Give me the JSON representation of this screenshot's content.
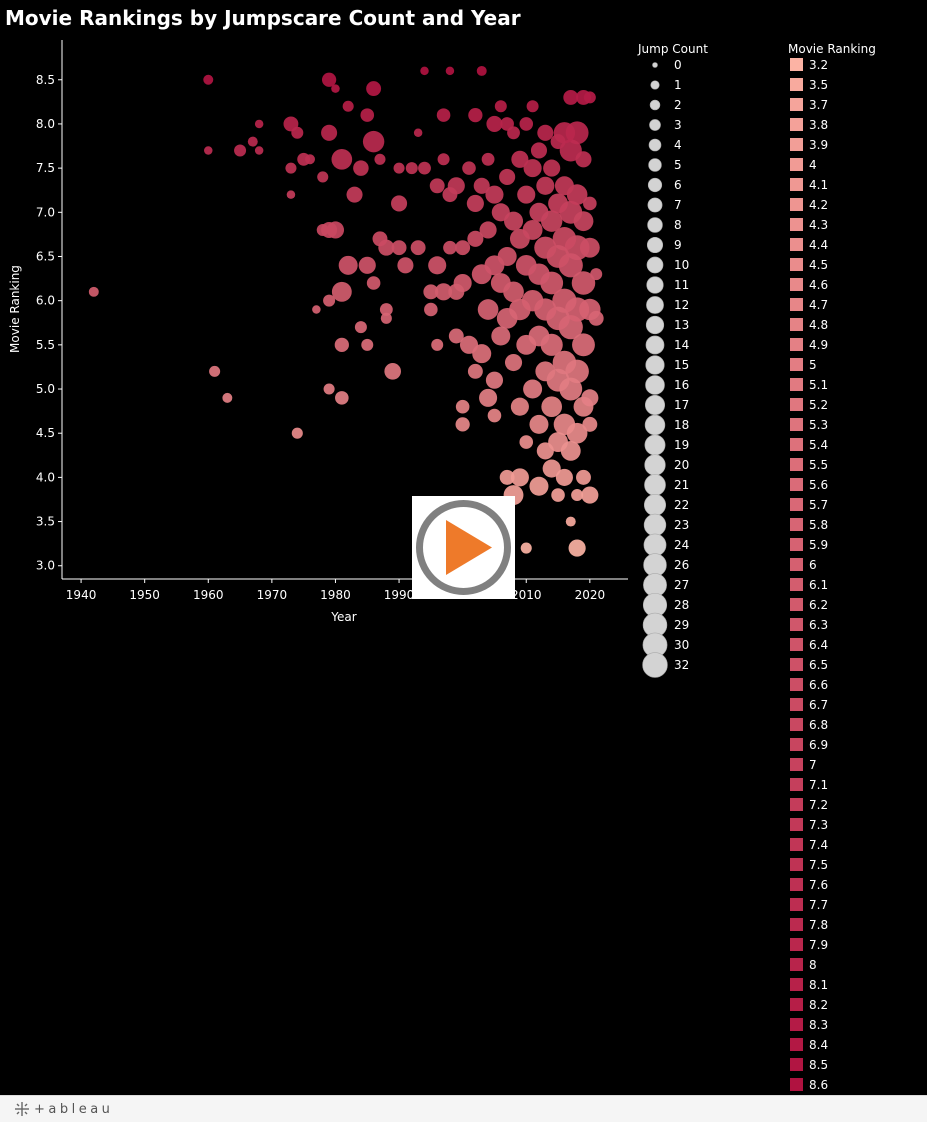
{
  "chart_data": {
    "type": "scatter",
    "title": "Movie Rankings by Jumpscare Count and Year",
    "xlabel": "Year",
    "ylabel": "Movie Ranking",
    "xlim": [
      1937,
      2026
    ],
    "ylim": [
      2.85,
      8.95
    ],
    "x_ticks": [
      "1940",
      "1950",
      "1960",
      "1970",
      "1980",
      "1990",
      "2000",
      "2010",
      "2020"
    ],
    "y_ticks": [
      "3.0",
      "3.5",
      "4.0",
      "4.5",
      "5.0",
      "5.5",
      "6.0",
      "6.5",
      "7.0",
      "7.5",
      "8.0",
      "8.5"
    ],
    "grid": false,
    "size_legend": {
      "title": "Jump Count",
      "values": [
        0,
        1,
        2,
        3,
        4,
        5,
        6,
        7,
        8,
        9,
        10,
        11,
        12,
        13,
        14,
        15,
        16,
        17,
        18,
        19,
        20,
        21,
        22,
        23,
        24,
        26,
        27,
        28,
        29,
        30,
        32
      ],
      "color": "#d3d3d3"
    },
    "color_legend": {
      "title": "Movie Ranking",
      "values": [
        "3.2",
        "3.5",
        "3.7",
        "3.8",
        "3.9",
        "4",
        "4.1",
        "4.2",
        "4.3",
        "4.4",
        "4.5",
        "4.6",
        "4.7",
        "4.8",
        "4.9",
        "5",
        "5.1",
        "5.2",
        "5.3",
        "5.4",
        "5.5",
        "5.6",
        "5.7",
        "5.8",
        "5.9",
        "6",
        "6.1",
        "6.2",
        "6.3",
        "6.4",
        "6.5",
        "6.6",
        "6.7",
        "6.8",
        "6.9",
        "7",
        "7.1",
        "7.2",
        "7.3",
        "7.4",
        "7.5",
        "7.6",
        "7.7",
        "7.8",
        "7.9",
        "8",
        "8.1",
        "8.2",
        "8.3",
        "8.4",
        "8.5",
        "8.6"
      ],
      "color_low": "#fcb3a4",
      "color_high": "#b01240"
    },
    "points": [
      {
        "x": 1942,
        "y": 6.1,
        "jumps": 2
      },
      {
        "x": 1960,
        "y": 8.5,
        "jumps": 2
      },
      {
        "x": 1960,
        "y": 7.7,
        "jumps": 1
      },
      {
        "x": 1961,
        "y": 5.2,
        "jumps": 3
      },
      {
        "x": 1963,
        "y": 4.9,
        "jumps": 2
      },
      {
        "x": 1965,
        "y": 7.7,
        "jumps": 4
      },
      {
        "x": 1967,
        "y": 7.8,
        "jumps": 2
      },
      {
        "x": 1968,
        "y": 8.0,
        "jumps": 1
      },
      {
        "x": 1968,
        "y": 7.7,
        "jumps": 1
      },
      {
        "x": 1973,
        "y": 8.0,
        "jumps": 8
      },
      {
        "x": 1973,
        "y": 7.5,
        "jumps": 3
      },
      {
        "x": 1973,
        "y": 7.2,
        "jumps": 1
      },
      {
        "x": 1974,
        "y": 7.9,
        "jumps": 4
      },
      {
        "x": 1974,
        "y": 4.5,
        "jumps": 3
      },
      {
        "x": 1975,
        "y": 7.6,
        "jumps": 5
      },
      {
        "x": 1976,
        "y": 7.6,
        "jumps": 2
      },
      {
        "x": 1977,
        "y": 5.9,
        "jumps": 1
      },
      {
        "x": 1978,
        "y": 7.4,
        "jumps": 3
      },
      {
        "x": 1978,
        "y": 6.8,
        "jumps": 4
      },
      {
        "x": 1979,
        "y": 8.5,
        "jumps": 7
      },
      {
        "x": 1979,
        "y": 7.9,
        "jumps": 10
      },
      {
        "x": 1979,
        "y": 6.8,
        "jumps": 10
      },
      {
        "x": 1979,
        "y": 6.0,
        "jumps": 4
      },
      {
        "x": 1979,
        "y": 5.0,
        "jumps": 3
      },
      {
        "x": 1980,
        "y": 8.4,
        "jumps": 1
      },
      {
        "x": 1980,
        "y": 6.8,
        "jumps": 12
      },
      {
        "x": 1981,
        "y": 7.6,
        "jumps": 20
      },
      {
        "x": 1981,
        "y": 6.1,
        "jumps": 18
      },
      {
        "x": 1981,
        "y": 5.5,
        "jumps": 7
      },
      {
        "x": 1981,
        "y": 4.9,
        "jumps": 6
      },
      {
        "x": 1982,
        "y": 8.2,
        "jumps": 3
      },
      {
        "x": 1982,
        "y": 6.4,
        "jumps": 16
      },
      {
        "x": 1983,
        "y": 7.2,
        "jumps": 10
      },
      {
        "x": 1984,
        "y": 7.5,
        "jumps": 9
      },
      {
        "x": 1984,
        "y": 5.7,
        "jumps": 4
      },
      {
        "x": 1985,
        "y": 8.1,
        "jumps": 6
      },
      {
        "x": 1985,
        "y": 6.4,
        "jumps": 12
      },
      {
        "x": 1985,
        "y": 5.5,
        "jumps": 4
      },
      {
        "x": 1986,
        "y": 8.4,
        "jumps": 8
      },
      {
        "x": 1986,
        "y": 7.8,
        "jumps": 22
      },
      {
        "x": 1986,
        "y": 6.2,
        "jumps": 6
      },
      {
        "x": 1987,
        "y": 7.6,
        "jumps": 3
      },
      {
        "x": 1987,
        "y": 6.7,
        "jumps": 8
      },
      {
        "x": 1988,
        "y": 6.6,
        "jumps": 10
      },
      {
        "x": 1988,
        "y": 5.9,
        "jumps": 5
      },
      {
        "x": 1988,
        "y": 5.8,
        "jumps": 3
      },
      {
        "x": 1989,
        "y": 5.2,
        "jumps": 11
      },
      {
        "x": 1990,
        "y": 7.1,
        "jumps": 10
      },
      {
        "x": 1990,
        "y": 7.5,
        "jumps": 3
      },
      {
        "x": 1990,
        "y": 6.6,
        "jumps": 8
      },
      {
        "x": 1991,
        "y": 6.4,
        "jumps": 10
      },
      {
        "x": 1992,
        "y": 7.5,
        "jumps": 4
      },
      {
        "x": 1993,
        "y": 7.9,
        "jumps": 1
      },
      {
        "x": 1993,
        "y": 6.6,
        "jumps": 8
      },
      {
        "x": 1994,
        "y": 8.6,
        "jumps": 1
      },
      {
        "x": 1994,
        "y": 7.5,
        "jumps": 5
      },
      {
        "x": 1995,
        "y": 6.1,
        "jumps": 8
      },
      {
        "x": 1995,
        "y": 5.9,
        "jumps": 6
      },
      {
        "x": 1996,
        "y": 7.3,
        "jumps": 8
      },
      {
        "x": 1996,
        "y": 6.4,
        "jumps": 14
      },
      {
        "x": 1996,
        "y": 5.5,
        "jumps": 4
      },
      {
        "x": 1997,
        "y": 8.1,
        "jumps": 6
      },
      {
        "x": 1997,
        "y": 7.6,
        "jumps": 4
      },
      {
        "x": 1997,
        "y": 6.1,
        "jumps": 12
      },
      {
        "x": 1998,
        "y": 8.6,
        "jumps": 1
      },
      {
        "x": 1998,
        "y": 7.2,
        "jumps": 8
      },
      {
        "x": 1998,
        "y": 6.6,
        "jumps": 6
      },
      {
        "x": 1999,
        "y": 7.3,
        "jumps": 12
      },
      {
        "x": 1999,
        "y": 6.1,
        "jumps": 10
      },
      {
        "x": 1999,
        "y": 5.6,
        "jumps": 8
      },
      {
        "x": 2000,
        "y": 6.6,
        "jumps": 8
      },
      {
        "x": 2000,
        "y": 6.2,
        "jumps": 14
      },
      {
        "x": 2000,
        "y": 4.8,
        "jumps": 6
      },
      {
        "x": 2000,
        "y": 4.6,
        "jumps": 7
      },
      {
        "x": 2001,
        "y": 7.5,
        "jumps": 6
      },
      {
        "x": 2001,
        "y": 5.5,
        "jumps": 14
      },
      {
        "x": 2002,
        "y": 8.1,
        "jumps": 7
      },
      {
        "x": 2002,
        "y": 7.1,
        "jumps": 12
      },
      {
        "x": 2002,
        "y": 6.7,
        "jumps": 10
      },
      {
        "x": 2002,
        "y": 5.2,
        "jumps": 8
      },
      {
        "x": 2003,
        "y": 8.6,
        "jumps": 2
      },
      {
        "x": 2003,
        "y": 7.3,
        "jumps": 10
      },
      {
        "x": 2003,
        "y": 6.3,
        "jumps": 18
      },
      {
        "x": 2003,
        "y": 5.4,
        "jumps": 16
      },
      {
        "x": 2004,
        "y": 7.6,
        "jumps": 5
      },
      {
        "x": 2004,
        "y": 6.8,
        "jumps": 12
      },
      {
        "x": 2004,
        "y": 5.9,
        "jumps": 20
      },
      {
        "x": 2004,
        "y": 4.9,
        "jumps": 14
      },
      {
        "x": 2005,
        "y": 8.0,
        "jumps": 10
      },
      {
        "x": 2005,
        "y": 7.2,
        "jumps": 14
      },
      {
        "x": 2005,
        "y": 6.4,
        "jumps": 18
      },
      {
        "x": 2005,
        "y": 5.1,
        "jumps": 12
      },
      {
        "x": 2005,
        "y": 4.7,
        "jumps": 6
      },
      {
        "x": 2006,
        "y": 8.2,
        "jumps": 4
      },
      {
        "x": 2006,
        "y": 7.0,
        "jumps": 14
      },
      {
        "x": 2006,
        "y": 6.2,
        "jumps": 18
      },
      {
        "x": 2006,
        "y": 5.6,
        "jumps": 16
      },
      {
        "x": 2007,
        "y": 8.0,
        "jumps": 6
      },
      {
        "x": 2007,
        "y": 7.4,
        "jumps": 10
      },
      {
        "x": 2007,
        "y": 6.5,
        "jumps": 16
      },
      {
        "x": 2007,
        "y": 5.8,
        "jumps": 20
      },
      {
        "x": 2007,
        "y": 4.0,
        "jumps": 8
      },
      {
        "x": 2008,
        "y": 7.9,
        "jumps": 5
      },
      {
        "x": 2008,
        "y": 6.9,
        "jumps": 16
      },
      {
        "x": 2008,
        "y": 6.1,
        "jumps": 20
      },
      {
        "x": 2008,
        "y": 5.3,
        "jumps": 12
      },
      {
        "x": 2008,
        "y": 3.8,
        "jumps": 18
      },
      {
        "x": 2009,
        "y": 7.6,
        "jumps": 12
      },
      {
        "x": 2009,
        "y": 6.7,
        "jumps": 18
      },
      {
        "x": 2009,
        "y": 5.9,
        "jumps": 22
      },
      {
        "x": 2009,
        "y": 4.8,
        "jumps": 14
      },
      {
        "x": 2009,
        "y": 4.0,
        "jumps": 14
      },
      {
        "x": 2010,
        "y": 8.0,
        "jumps": 6
      },
      {
        "x": 2010,
        "y": 7.2,
        "jumps": 14
      },
      {
        "x": 2010,
        "y": 6.4,
        "jumps": 20
      },
      {
        "x": 2010,
        "y": 5.5,
        "jumps": 18
      },
      {
        "x": 2010,
        "y": 4.4,
        "jumps": 6
      },
      {
        "x": 2010,
        "y": 3.2,
        "jumps": 3
      },
      {
        "x": 2011,
        "y": 8.2,
        "jumps": 4
      },
      {
        "x": 2011,
        "y": 7.5,
        "jumps": 14
      },
      {
        "x": 2011,
        "y": 6.8,
        "jumps": 18
      },
      {
        "x": 2011,
        "y": 6.0,
        "jumps": 22
      },
      {
        "x": 2011,
        "y": 5.0,
        "jumps": 16
      },
      {
        "x": 2012,
        "y": 7.7,
        "jumps": 10
      },
      {
        "x": 2012,
        "y": 7.0,
        "jumps": 16
      },
      {
        "x": 2012,
        "y": 6.3,
        "jumps": 22
      },
      {
        "x": 2012,
        "y": 5.6,
        "jumps": 20
      },
      {
        "x": 2012,
        "y": 4.6,
        "jumps": 16
      },
      {
        "x": 2012,
        "y": 3.9,
        "jumps": 16
      },
      {
        "x": 2013,
        "y": 7.9,
        "jumps": 10
      },
      {
        "x": 2013,
        "y": 7.3,
        "jumps": 14
      },
      {
        "x": 2013,
        "y": 6.6,
        "jumps": 24
      },
      {
        "x": 2013,
        "y": 5.9,
        "jumps": 24
      },
      {
        "x": 2013,
        "y": 5.2,
        "jumps": 18
      },
      {
        "x": 2013,
        "y": 4.3,
        "jumps": 12
      },
      {
        "x": 2014,
        "y": 7.5,
        "jumps": 12
      },
      {
        "x": 2014,
        "y": 6.9,
        "jumps": 22
      },
      {
        "x": 2014,
        "y": 6.2,
        "jumps": 26
      },
      {
        "x": 2014,
        "y": 5.5,
        "jumps": 24
      },
      {
        "x": 2014,
        "y": 4.8,
        "jumps": 20
      },
      {
        "x": 2014,
        "y": 4.1,
        "jumps": 14
      },
      {
        "x": 2015,
        "y": 7.8,
        "jumps": 8
      },
      {
        "x": 2015,
        "y": 7.1,
        "jumps": 18
      },
      {
        "x": 2015,
        "y": 6.5,
        "jumps": 26
      },
      {
        "x": 2015,
        "y": 5.8,
        "jumps": 28
      },
      {
        "x": 2015,
        "y": 5.1,
        "jumps": 26
      },
      {
        "x": 2015,
        "y": 4.4,
        "jumps": 18
      },
      {
        "x": 2015,
        "y": 3.8,
        "jumps": 6
      },
      {
        "x": 2016,
        "y": 7.9,
        "jumps": 22
      },
      {
        "x": 2016,
        "y": 7.3,
        "jumps": 16
      },
      {
        "x": 2016,
        "y": 6.7,
        "jumps": 28
      },
      {
        "x": 2016,
        "y": 6.0,
        "jumps": 30
      },
      {
        "x": 2016,
        "y": 5.3,
        "jumps": 28
      },
      {
        "x": 2016,
        "y": 4.6,
        "jumps": 22
      },
      {
        "x": 2016,
        "y": 4.0,
        "jumps": 12
      },
      {
        "x": 2017,
        "y": 8.3,
        "jumps": 8
      },
      {
        "x": 2017,
        "y": 7.7,
        "jumps": 24
      },
      {
        "x": 2017,
        "y": 7.0,
        "jumps": 26
      },
      {
        "x": 2017,
        "y": 6.4,
        "jumps": 30
      },
      {
        "x": 2017,
        "y": 5.7,
        "jumps": 30
      },
      {
        "x": 2017,
        "y": 5.0,
        "jumps": 26
      },
      {
        "x": 2017,
        "y": 4.3,
        "jumps": 18
      },
      {
        "x": 2017,
        "y": 3.5,
        "jumps": 2
      },
      {
        "x": 2018,
        "y": 7.9,
        "jumps": 26
      },
      {
        "x": 2018,
        "y": 7.2,
        "jumps": 20
      },
      {
        "x": 2018,
        "y": 6.6,
        "jumps": 32
      },
      {
        "x": 2018,
        "y": 5.9,
        "jumps": 30
      },
      {
        "x": 2018,
        "y": 5.2,
        "jumps": 28
      },
      {
        "x": 2018,
        "y": 4.5,
        "jumps": 20
      },
      {
        "x": 2018,
        "y": 3.8,
        "jumps": 4
      },
      {
        "x": 2018,
        "y": 3.2,
        "jumps": 12
      },
      {
        "x": 2019,
        "y": 8.3,
        "jumps": 8
      },
      {
        "x": 2019,
        "y": 7.6,
        "jumps": 10
      },
      {
        "x": 2019,
        "y": 6.9,
        "jumps": 18
      },
      {
        "x": 2019,
        "y": 6.2,
        "jumps": 28
      },
      {
        "x": 2019,
        "y": 5.5,
        "jumps": 26
      },
      {
        "x": 2019,
        "y": 4.8,
        "jumps": 18
      },
      {
        "x": 2019,
        "y": 4.0,
        "jumps": 8
      },
      {
        "x": 2020,
        "y": 8.3,
        "jumps": 4
      },
      {
        "x": 2020,
        "y": 7.1,
        "jumps": 6
      },
      {
        "x": 2020,
        "y": 6.6,
        "jumps": 18
      },
      {
        "x": 2020,
        "y": 5.9,
        "jumps": 22
      },
      {
        "x": 2020,
        "y": 4.9,
        "jumps": 12
      },
      {
        "x": 2020,
        "y": 4.6,
        "jumps": 8
      },
      {
        "x": 2020,
        "y": 3.8,
        "jumps": 12
      },
      {
        "x": 2021,
        "y": 6.3,
        "jumps": 4
      },
      {
        "x": 2021,
        "y": 5.8,
        "jumps": 8
      }
    ]
  }
}
